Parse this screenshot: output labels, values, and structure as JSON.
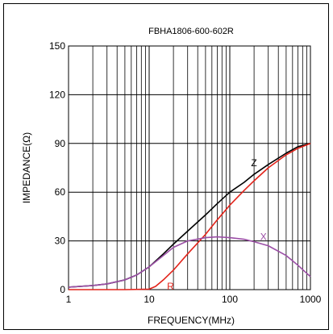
{
  "chart_data": {
    "type": "line",
    "title": "FBHA1806-600-602R",
    "xlabel": "FREQUENCY(MHz)",
    "ylabel": "IMPEDANCE(Ω)",
    "x_scale": "log",
    "xlim": [
      1,
      1000
    ],
    "ylim": [
      0,
      150
    ],
    "x_ticks": [
      "1",
      "10",
      "100",
      "1000"
    ],
    "y_ticks": [
      "0",
      "30",
      "60",
      "90",
      "120",
      "150"
    ],
    "grid": true,
    "series": [
      {
        "name": "Z",
        "color": "#000000",
        "x": [
          1,
          2,
          3,
          5,
          7,
          10,
          15,
          20,
          30,
          50,
          70,
          100,
          150,
          200,
          300,
          500,
          700,
          1000
        ],
        "y": [
          1.5,
          2.5,
          3.5,
          6,
          9,
          14,
          22,
          28,
          36,
          46,
          53,
          60,
          66,
          71,
          77,
          84,
          88,
          90
        ]
      },
      {
        "name": "R",
        "color": "#e2231a",
        "x": [
          1,
          5,
          10,
          12,
          15,
          20,
          30,
          50,
          70,
          100,
          150,
          200,
          300,
          500,
          700,
          1000
        ],
        "y": [
          0,
          0,
          0.3,
          2,
          6,
          12,
          22,
          34,
          43,
          52,
          61,
          67,
          75,
          83,
          87,
          90
        ]
      },
      {
        "name": "X",
        "color": "#9b4fa6",
        "x": [
          1,
          2,
          3,
          5,
          7,
          10,
          15,
          20,
          30,
          50,
          70,
          100,
          150,
          200,
          300,
          500,
          700,
          1000
        ],
        "y": [
          1.5,
          2.5,
          3.5,
          6,
          9,
          14,
          21,
          26,
          30,
          32,
          32.5,
          32,
          31,
          29.5,
          27,
          21,
          15,
          8
        ]
      }
    ]
  }
}
